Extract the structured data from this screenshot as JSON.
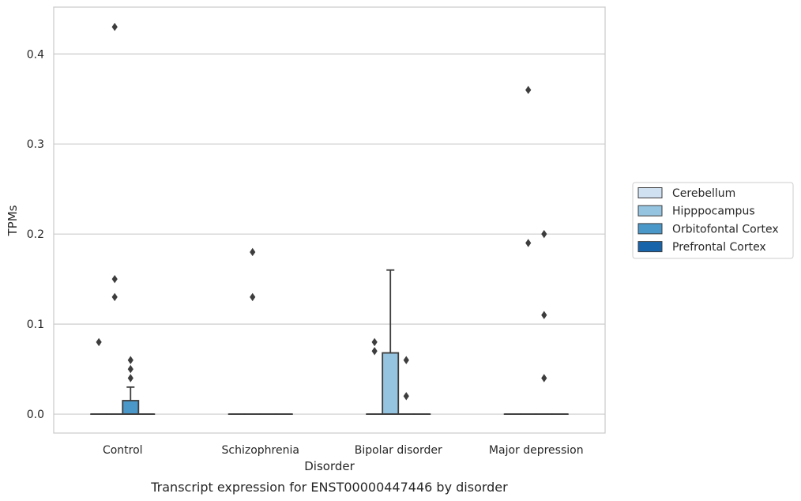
{
  "chart_data": {
    "type": "box",
    "caption": "Transcript expression for ENST00000447446 by disorder",
    "xlabel": "Disorder",
    "ylabel": "TPMs",
    "ylim": [
      -0.021,
      0.452
    ],
    "yticks": [
      0.0,
      0.1,
      0.2,
      0.3,
      0.4
    ],
    "ytick_labels": [
      "0.0",
      "0.1",
      "0.2",
      "0.3",
      "0.4"
    ],
    "grid": "horizontal",
    "categories": [
      "Control",
      "Schizophrenia",
      "Bipolar disorder",
      "Major depression"
    ],
    "legend": {
      "placement": "right",
      "entries": [
        {
          "name": "Cerebellum",
          "color": "#d0e1f2"
        },
        {
          "name": "Hipppocampus",
          "color": "#94c4df"
        },
        {
          "name": "Orbitofontal Cortex",
          "color": "#4a98c9"
        },
        {
          "name": "Prefrontal Cortex",
          "color": "#1764ab"
        }
      ]
    },
    "boxes": [
      {
        "category": "Control",
        "series": "Cerebellum",
        "q1": 0,
        "median": 0,
        "q3": 0,
        "whislo": 0,
        "whishi": 0,
        "fliers": [
          0.08
        ]
      },
      {
        "category": "Control",
        "series": "Hipppocampus",
        "q1": 0,
        "median": 0,
        "q3": 0,
        "whislo": 0,
        "whishi": 0,
        "fliers": [
          0.13,
          0.15,
          0.43
        ]
      },
      {
        "category": "Control",
        "series": "Orbitofontal Cortex",
        "q1": 0,
        "median": 0,
        "q3": 0.015,
        "whislo": 0,
        "whishi": 0.03,
        "fliers": [
          0.04,
          0.05,
          0.06
        ]
      },
      {
        "category": "Control",
        "series": "Prefrontal Cortex",
        "q1": 0,
        "median": 0,
        "q3": 0,
        "whislo": 0,
        "whishi": 0,
        "fliers": []
      },
      {
        "category": "Schizophrenia",
        "series": "Cerebellum",
        "q1": 0,
        "median": 0,
        "q3": 0,
        "whislo": 0,
        "whishi": 0,
        "fliers": []
      },
      {
        "category": "Schizophrenia",
        "series": "Hipppocampus",
        "q1": 0,
        "median": 0,
        "q3": 0,
        "whislo": 0,
        "whishi": 0,
        "fliers": [
          0.13,
          0.18
        ]
      },
      {
        "category": "Schizophrenia",
        "series": "Orbitofontal Cortex",
        "q1": 0,
        "median": 0,
        "q3": 0,
        "whislo": 0,
        "whishi": 0,
        "fliers": []
      },
      {
        "category": "Schizophrenia",
        "series": "Prefrontal Cortex",
        "q1": 0,
        "median": 0,
        "q3": 0,
        "whislo": 0,
        "whishi": 0,
        "fliers": []
      },
      {
        "category": "Bipolar disorder",
        "series": "Cerebellum",
        "q1": 0,
        "median": 0,
        "q3": 0,
        "whislo": 0,
        "whishi": 0,
        "fliers": [
          0.07,
          0.08
        ]
      },
      {
        "category": "Bipolar disorder",
        "series": "Hipppocampus",
        "q1": 0,
        "median": 0,
        "q3": 0.068,
        "whislo": 0,
        "whishi": 0.16,
        "fliers": []
      },
      {
        "category": "Bipolar disorder",
        "series": "Orbitofontal Cortex",
        "q1": 0,
        "median": 0,
        "q3": 0,
        "whislo": 0,
        "whishi": 0,
        "fliers": [
          0.02,
          0.06
        ]
      },
      {
        "category": "Bipolar disorder",
        "series": "Prefrontal Cortex",
        "q1": 0,
        "median": 0,
        "q3": 0,
        "whislo": 0,
        "whishi": 0,
        "fliers": []
      },
      {
        "category": "Major depression",
        "series": "Cerebellum",
        "q1": 0,
        "median": 0,
        "q3": 0,
        "whislo": 0,
        "whishi": 0,
        "fliers": []
      },
      {
        "category": "Major depression",
        "series": "Hipppocampus",
        "q1": 0,
        "median": 0,
        "q3": 0,
        "whislo": 0,
        "whishi": 0,
        "fliers": [
          0.19,
          0.36
        ]
      },
      {
        "category": "Major depression",
        "series": "Orbitofontal Cortex",
        "q1": 0,
        "median": 0,
        "q3": 0,
        "whislo": 0,
        "whishi": 0,
        "fliers": [
          0.04,
          0.11,
          0.2
        ]
      },
      {
        "category": "Major depression",
        "series": "Prefrontal Cortex",
        "q1": 0,
        "median": 0,
        "q3": 0,
        "whislo": 0,
        "whishi": 0,
        "fliers": []
      }
    ]
  }
}
